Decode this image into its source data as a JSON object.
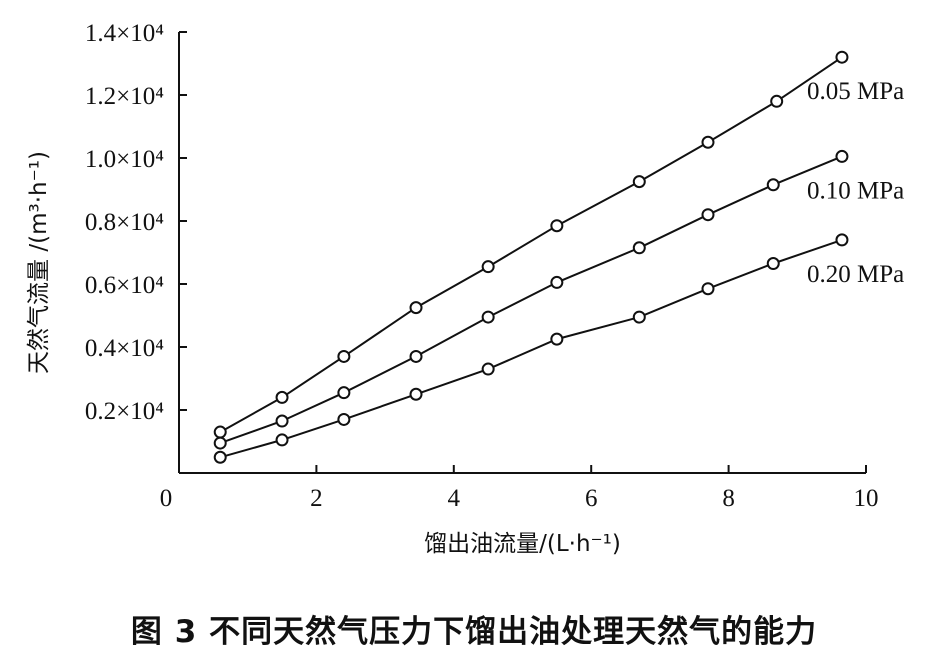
{
  "caption": "图 3 不同天然气压力下馏出油处理天然气的能力",
  "chart_data": {
    "type": "line",
    "xlabel": "馏出油流量/(L·h⁻¹)",
    "ylabel": "天然气流量 /(m³·h⁻¹)",
    "xlim": [
      0,
      10
    ],
    "ylim": [
      0,
      14000
    ],
    "grid": false,
    "x_ticks": [
      {
        "value": 0,
        "label": "0"
      },
      {
        "value": 2,
        "label": "2"
      },
      {
        "value": 4,
        "label": "4"
      },
      {
        "value": 6,
        "label": "6"
      },
      {
        "value": 8,
        "label": "8"
      },
      {
        "value": 10,
        "label": "10"
      }
    ],
    "y_ticks": [
      {
        "value": 2000,
        "label": "0.2×10⁴"
      },
      {
        "value": 4000,
        "label": "0.4×10⁴"
      },
      {
        "value": 6000,
        "label": "0.6×10⁴"
      },
      {
        "value": 8000,
        "label": "0.8×10⁴"
      },
      {
        "value": 10000,
        "label": "1.0×10⁴"
      },
      {
        "value": 12000,
        "label": "1.2×10⁴"
      },
      {
        "value": 14000,
        "label": "1.4×10⁴"
      }
    ],
    "series": [
      {
        "name": "0.05 MPa",
        "x": [
          0.6,
          1.5,
          2.4,
          3.45,
          4.5,
          5.5,
          6.7,
          7.7,
          8.7,
          9.65
        ],
        "y": [
          1300,
          2400,
          3700,
          5250,
          6550,
          7850,
          9250,
          10500,
          11800,
          13200
        ]
      },
      {
        "name": "0.10 MPa",
        "x": [
          0.6,
          1.5,
          2.4,
          3.45,
          4.5,
          5.5,
          6.7,
          7.7,
          8.65,
          9.65
        ],
        "y": [
          950,
          1650,
          2550,
          3700,
          4950,
          6050,
          7150,
          8200,
          9150,
          10050
        ]
      },
      {
        "name": "0.20 MPa",
        "x": [
          0.6,
          1.5,
          2.4,
          3.45,
          4.5,
          5.5,
          6.7,
          7.7,
          8.65,
          9.65
        ],
        "y": [
          500,
          1050,
          1700,
          2500,
          3300,
          4250,
          4950,
          5850,
          6650,
          7400
        ]
      }
    ]
  }
}
